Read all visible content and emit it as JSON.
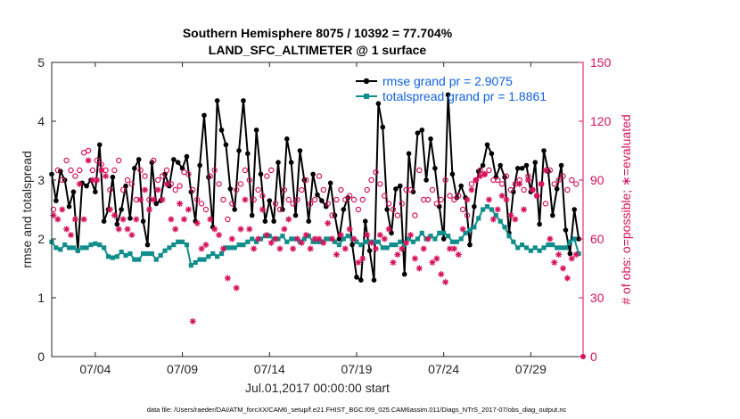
{
  "chart_data": {
    "type": "line",
    "title": "Southern Hemisphere 8075 / 10392 = 77.704%",
    "subtitle": "LAND_SFC_ALTIMETER @ 1 surface",
    "xlabel": "Jul.01,2017 00:00:00 start",
    "ylabel": "rmse and totalspread",
    "ylabel_right": "# of obs: o=possible; ∗=evaluated",
    "xlim": [
      1.5,
      32.0
    ],
    "ylim": [
      0,
      5
    ],
    "ylim_right": [
      0,
      150
    ],
    "xticks": [
      4,
      9,
      14,
      19,
      24,
      29
    ],
    "xtick_labels": [
      "07/04",
      "07/09",
      "07/14",
      "07/19",
      "07/24",
      "07/29"
    ],
    "yticks": [
      0,
      1,
      2,
      3,
      4,
      5
    ],
    "yticks_right": [
      0,
      30,
      60,
      90,
      120,
      150
    ],
    "legend": [
      "rmse grand pr = 2.9075",
      "totalspread grand pr = 1.8861"
    ],
    "footnote": "data file: /Users/raeder/DAI/ATM_forcXX/CAM6_setup/f.e21.FHIST_BGC.f09_025.CAM6assim.011/Diags_NTrS_2017-07/obs_diag_output.nc",
    "series": [
      {
        "name": "rmse",
        "color": "#000000",
        "x": [
          1.5,
          1.75,
          2.0,
          2.25,
          2.5,
          2.75,
          3.0,
          3.25,
          3.5,
          3.75,
          4.0,
          4.25,
          4.5,
          4.75,
          5.0,
          5.25,
          5.5,
          5.75,
          6.0,
          6.25,
          6.5,
          6.75,
          7.0,
          7.25,
          7.5,
          7.75,
          8.0,
          8.25,
          8.5,
          8.75,
          9.0,
          9.25,
          9.5,
          9.75,
          10.0,
          10.25,
          10.5,
          10.75,
          11.0,
          11.25,
          11.5,
          11.75,
          12.0,
          12.25,
          12.5,
          12.75,
          13.0,
          13.25,
          13.5,
          13.75,
          14.0,
          14.25,
          14.5,
          14.75,
          15.0,
          15.25,
          15.5,
          15.75,
          16.0,
          16.25,
          16.5,
          16.75,
          17.0,
          17.25,
          17.5,
          17.75,
          18.0,
          18.25,
          18.5,
          18.75,
          19.0,
          19.25,
          19.5,
          19.75,
          20.0,
          20.25,
          20.5,
          20.75,
          21.0,
          21.25,
          21.5,
          21.75,
          22.0,
          22.25,
          22.5,
          22.75,
          23.0,
          23.25,
          23.5,
          23.75,
          24.0,
          24.25,
          24.5,
          24.75,
          25.0,
          25.25,
          25.5,
          25.75,
          26.0,
          26.25,
          26.5,
          26.75,
          27.0,
          27.25,
          27.5,
          27.75,
          28.0,
          28.25,
          28.5,
          28.75,
          29.0,
          29.25,
          29.5,
          29.75,
          30.0,
          30.25,
          30.5,
          30.75,
          31.0,
          31.25,
          31.5,
          31.75
        ],
        "values": [
          3.1,
          2.65,
          3.15,
          3.0,
          2.55,
          2.8,
          1.8,
          2.95,
          2.9,
          3.0,
          2.8,
          3.6,
          2.3,
          2.5,
          3.05,
          2.25,
          2.5,
          2.9,
          2.35,
          3.2,
          3.35,
          2.3,
          1.9,
          3.3,
          2.6,
          2.65,
          3.1,
          2.9,
          3.35,
          3.3,
          3.2,
          3.4,
          2.8,
          2.3,
          3.25,
          4.1,
          3.05,
          2.2,
          4.35,
          3.85,
          3.6,
          2.85,
          2.5,
          3.5,
          4.35,
          3.45,
          2.4,
          3.85,
          3.1,
          2.3,
          2.65,
          2.3,
          3.3,
          2.5,
          3.7,
          3.3,
          2.4,
          3.5,
          3.0,
          2.3,
          3.1,
          2.75,
          2.65,
          2.55,
          2.95,
          2.4,
          2.0,
          2.5,
          2.7,
          1.9,
          1.35,
          1.3,
          2.3,
          1.8,
          1.3,
          4.3,
          3.9,
          2.5,
          2.1,
          2.85,
          2.9,
          1.4,
          3.45,
          2.8,
          3.8,
          3.85,
          3.0,
          3.7,
          3.2,
          2.55,
          2.0,
          4.45,
          3.1,
          2.7,
          2.9,
          2.7,
          1.9,
          2.55,
          3.15,
          3.25,
          3.6,
          3.45,
          3.05,
          3.25,
          3.05,
          2.1,
          2.8,
          3.2,
          3.2,
          3.25,
          2.8,
          3.3,
          2.25,
          3.5,
          3.15,
          2.4,
          2.85,
          3.25,
          2.15,
          1.75,
          2.5,
          2.0
        ]
      },
      {
        "name": "totalspread",
        "color": "#118e8c",
        "x": [
          1.5,
          1.75,
          2.0,
          2.25,
          2.5,
          2.75,
          3.0,
          3.25,
          3.5,
          3.75,
          4.0,
          4.25,
          4.5,
          4.75,
          5.0,
          5.25,
          5.5,
          5.75,
          6.0,
          6.25,
          6.5,
          6.75,
          7.0,
          7.25,
          7.5,
          7.75,
          8.0,
          8.25,
          8.5,
          8.75,
          9.0,
          9.25,
          9.5,
          9.75,
          10.0,
          10.25,
          10.5,
          10.75,
          11.0,
          11.25,
          11.5,
          11.75,
          12.0,
          12.25,
          12.5,
          12.75,
          13.0,
          13.25,
          13.5,
          13.75,
          14.0,
          14.25,
          14.5,
          14.75,
          15.0,
          15.25,
          15.5,
          15.75,
          16.0,
          16.25,
          16.5,
          16.75,
          17.0,
          17.25,
          17.5,
          17.75,
          18.0,
          18.25,
          18.5,
          18.75,
          19.0,
          19.25,
          19.5,
          19.75,
          20.0,
          20.25,
          20.5,
          20.75,
          21.0,
          21.25,
          21.5,
          21.75,
          22.0,
          22.25,
          22.5,
          22.75,
          23.0,
          23.25,
          23.5,
          23.75,
          24.0,
          24.25,
          24.5,
          24.75,
          25.0,
          25.25,
          25.5,
          25.75,
          26.0,
          26.25,
          26.5,
          26.75,
          27.0,
          27.25,
          27.5,
          27.75,
          28.0,
          28.25,
          28.5,
          28.75,
          29.0,
          29.25,
          29.5,
          29.75,
          30.0,
          30.25,
          30.5,
          30.75,
          31.0,
          31.25,
          31.5,
          31.75
        ],
        "values": [
          1.95,
          1.85,
          1.82,
          1.9,
          1.85,
          1.85,
          1.8,
          1.85,
          1.85,
          1.9,
          1.92,
          1.9,
          1.85,
          1.7,
          1.68,
          1.7,
          1.78,
          1.72,
          1.75,
          1.65,
          1.65,
          1.75,
          1.75,
          1.75,
          1.65,
          1.72,
          1.8,
          1.85,
          1.9,
          1.95,
          1.95,
          1.9,
          1.55,
          1.6,
          1.65,
          1.65,
          1.7,
          1.75,
          1.7,
          1.75,
          1.85,
          1.85,
          1.85,
          1.9,
          1.9,
          1.95,
          2.0,
          1.95,
          2.0,
          2.05,
          2.05,
          2.0,
          2.0,
          2.05,
          1.95,
          2.0,
          2.0,
          1.95,
          2.0,
          2.05,
          1.95,
          1.95,
          1.95,
          2.0,
          2.0,
          1.95,
          1.9,
          2.0,
          2.05,
          2.0,
          1.95,
          1.9,
          1.95,
          1.95,
          1.95,
          1.95,
          1.85,
          1.85,
          1.9,
          1.9,
          1.95,
          1.9,
          2.0,
          1.95,
          2.0,
          2.1,
          2.0,
          2.05,
          2.0,
          2.1,
          2.1,
          2.05,
          1.95,
          1.95,
          2.0,
          2.1,
          2.15,
          2.2,
          2.35,
          2.5,
          2.55,
          2.5,
          2.4,
          2.3,
          2.2,
          2.05,
          1.95,
          1.85,
          1.9,
          1.85,
          1.8,
          1.85,
          1.8,
          1.85,
          1.9,
          1.9,
          1.85,
          1.85,
          1.85,
          1.95,
          2.0,
          1.75
        ]
      },
      {
        "name": "obs possible",
        "axis": "right",
        "marker": "circle",
        "color": "#d6115a",
        "x": [
          1.6,
          1.85,
          2.1,
          2.35,
          2.6,
          2.85,
          3.1,
          3.35,
          3.6,
          3.85,
          4.1,
          4.35,
          4.6,
          4.85,
          5.1,
          5.35,
          5.6,
          5.85,
          6.1,
          6.35,
          6.6,
          6.85,
          7.1,
          7.35,
          7.6,
          7.85,
          8.1,
          8.35,
          8.6,
          8.85,
          9.1,
          9.35,
          9.6,
          9.85,
          10.1,
          10.35,
          10.6,
          10.85,
          11.1,
          11.35,
          11.6,
          11.85,
          12.1,
          12.35,
          12.6,
          12.85,
          13.1,
          13.35,
          13.6,
          13.85,
          14.1,
          14.35,
          14.6,
          14.85,
          15.1,
          15.35,
          15.6,
          15.85,
          16.1,
          16.35,
          16.6,
          16.85,
          17.1,
          17.35,
          17.6,
          17.85,
          18.1,
          18.35,
          18.6,
          18.85,
          19.1,
          19.35,
          19.6,
          19.85,
          20.1,
          20.35,
          20.6,
          20.85,
          21.1,
          21.35,
          21.6,
          21.85,
          22.1,
          22.35,
          22.6,
          22.85,
          23.1,
          23.35,
          23.6,
          23.85,
          24.1,
          24.35,
          24.6,
          24.85,
          25.1,
          25.35,
          25.6,
          25.85,
          26.1,
          26.35,
          26.6,
          26.85,
          27.1,
          27.35,
          27.6,
          27.85,
          28.1,
          28.35,
          28.6,
          28.85,
          29.1,
          29.35,
          29.6,
          29.85,
          30.1,
          30.35,
          30.6,
          30.85,
          31.1,
          31.35,
          31.6
        ],
        "values": [
          75,
          95,
          90,
          100,
          95,
          92,
          95,
          104,
          105,
          95,
          100,
          98,
          95,
          85,
          95,
          100,
          85,
          90,
          88,
          80,
          95,
          92,
          80,
          100,
          90,
          92,
          95,
          88,
          85,
          87,
          94,
          93,
          85,
          80,
          78,
          75,
          92,
          95,
          88,
          80,
          70,
          78,
          85,
          88,
          95,
          90,
          80,
          85,
          82,
          92,
          95,
          78,
          75,
          85,
          80,
          78,
          80,
          85,
          90,
          78,
          80,
          92,
          85,
          78,
          72,
          80,
          85,
          80,
          82,
          80,
          75,
          80,
          85,
          90,
          94,
          88,
          82,
          78,
          75,
          72,
          78,
          85,
          85,
          72,
          95,
          80,
          80,
          85,
          78,
          80,
          90,
          82,
          80,
          82,
          75,
          72,
          88,
          90,
          95,
          93,
          95,
          90,
          90,
          88,
          92,
          85,
          88,
          90,
          85,
          92,
          85,
          82,
          88,
          78,
          95,
          88,
          90,
          92,
          85,
          90,
          88
        ]
      },
      {
        "name": "obs evaluated",
        "axis": "right",
        "marker": "asterisk",
        "color": "#d6115a",
        "x": [
          1.6,
          1.85,
          2.1,
          2.35,
          2.6,
          2.85,
          3.1,
          3.35,
          3.6,
          3.85,
          4.1,
          4.35,
          4.6,
          4.85,
          5.1,
          5.35,
          5.6,
          5.85,
          6.1,
          6.35,
          6.6,
          6.85,
          7.1,
          7.35,
          7.6,
          7.85,
          8.1,
          8.35,
          8.6,
          8.85,
          9.1,
          9.35,
          9.6,
          9.85,
          10.1,
          10.35,
          10.6,
          10.85,
          11.1,
          11.35,
          11.6,
          11.85,
          12.1,
          12.35,
          12.6,
          12.85,
          13.1,
          13.35,
          13.6,
          13.85,
          14.1,
          14.35,
          14.6,
          14.85,
          15.1,
          15.35,
          15.6,
          15.85,
          16.1,
          16.35,
          16.6,
          16.85,
          17.1,
          17.35,
          17.6,
          17.85,
          18.1,
          18.35,
          18.6,
          18.85,
          19.1,
          19.35,
          19.6,
          19.85,
          20.1,
          20.35,
          20.6,
          20.85,
          21.1,
          21.35,
          21.6,
          21.85,
          22.1,
          22.35,
          22.6,
          22.85,
          23.1,
          23.35,
          23.6,
          23.85,
          24.1,
          24.35,
          24.6,
          24.85,
          25.1,
          25.35,
          25.6,
          25.85,
          26.1,
          26.35,
          26.6,
          26.85,
          27.1,
          27.35,
          27.6,
          27.85,
          28.1,
          28.35,
          28.6,
          28.85,
          29.1,
          29.35,
          29.6,
          29.85,
          30.1,
          30.35,
          30.6,
          30.85,
          31.1,
          31.35,
          31.6
        ],
        "values": [
          72,
          70,
          75,
          65,
          62,
          70,
          88,
          70,
          100,
          90,
          90,
          95,
          92,
          75,
          72,
          65,
          70,
          65,
          62,
          70,
          80,
          85,
          75,
          80,
          85,
          80,
          88,
          70,
          65,
          78,
          70,
          75,
          18,
          68,
          55,
          57,
          70,
          65,
          62,
          55,
          40,
          60,
          35,
          65,
          80,
          65,
          55,
          60,
          75,
          62,
          58,
          60,
          55,
          65,
          70,
          55,
          60,
          58,
          62,
          55,
          60,
          60,
          58,
          68,
          60,
          52,
          62,
          55,
          65,
          60,
          48,
          50,
          62,
          58,
          55,
          62,
          60,
          65,
          48,
          52,
          55,
          58,
          62,
          50,
          45,
          55,
          60,
          48,
          50,
          42,
          38,
          55,
          55,
          52,
          65,
          80,
          85,
          90,
          92,
          93,
          80,
          70,
          75,
          82,
          80,
          72,
          70,
          88,
          75,
          90,
          85,
          82,
          88,
          95,
          60,
          48,
          52,
          45,
          40,
          50,
          52
        ]
      }
    ]
  }
}
